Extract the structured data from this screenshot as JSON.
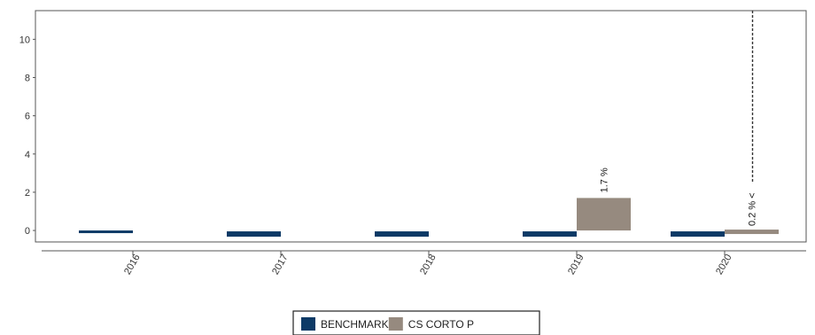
{
  "chart_data": {
    "type": "bar",
    "title": "",
    "xlabel": "",
    "ylabel": "",
    "categories": [
      "2016",
      "2017",
      "2018",
      "2019",
      "2020"
    ],
    "y_ticks": [
      "0",
      "2",
      "4",
      "6",
      "8",
      "10"
    ],
    "ylim": [
      -0.6,
      11.5
    ],
    "grid": false,
    "legend_position": "bottom-center",
    "series": [
      {
        "name": "BENCHMARK",
        "color": "#0d3a66",
        "values": [
          0.0,
          0.0,
          0.0,
          0.0,
          0.0
        ]
      },
      {
        "name": "CS CORTO P",
        "color": "#968a7f",
        "values": [
          null,
          null,
          null,
          1.7,
          0.2
        ]
      }
    ],
    "annotations": [
      {
        "category": "2019",
        "series": "CS CORTO P",
        "text": "1.7 %",
        "arrow": false
      },
      {
        "category": "2020",
        "series": "CS CORTO P",
        "text": "0.2 % <",
        "arrow": true
      }
    ]
  }
}
